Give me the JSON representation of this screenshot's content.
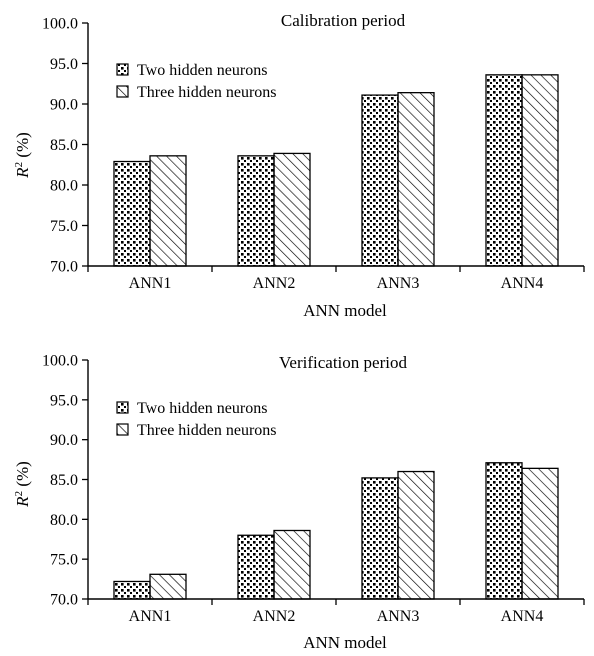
{
  "chart_data": [
    {
      "type": "bar",
      "title": "Calibration period",
      "xlabel": "ANN model",
      "ylabel_main": "R",
      "ylabel_sup": "2",
      "ylabel_unit": " (%)",
      "categories": [
        "ANN1",
        "ANN2",
        "ANN3",
        "ANN4"
      ],
      "ylim": [
        70.0,
        100.0
      ],
      "yticks": [
        "70.0",
        "75.0",
        "80.0",
        "85.0",
        "90.0",
        "95.0",
        "100.0"
      ],
      "grid": false,
      "legend_position": "top-left",
      "series": [
        {
          "name": "Two hidden neurons",
          "pattern": "dots",
          "values": [
            82.9,
            83.6,
            91.1,
            93.6
          ]
        },
        {
          "name": "Three hidden neurons",
          "pattern": "hatch",
          "values": [
            83.6,
            83.9,
            91.4,
            93.6
          ]
        }
      ]
    },
    {
      "type": "bar",
      "title": "Verification period",
      "xlabel": "ANN model",
      "ylabel_main": "R",
      "ylabel_sup": "2",
      "ylabel_unit": " (%)",
      "categories": [
        "ANN1",
        "ANN2",
        "ANN3",
        "ANN4"
      ],
      "ylim": [
        70.0,
        100.0
      ],
      "yticks": [
        "70.0",
        "75.0",
        "80.0",
        "85.0",
        "90.0",
        "95.0",
        "100.0"
      ],
      "grid": false,
      "legend_position": "top-left",
      "series": [
        {
          "name": "Two hidden neurons",
          "pattern": "dots",
          "values": [
            72.2,
            78.0,
            85.2,
            87.1
          ]
        },
        {
          "name": "Three hidden neurons",
          "pattern": "hatch",
          "values": [
            73.1,
            78.6,
            86.0,
            86.4
          ]
        }
      ]
    }
  ]
}
